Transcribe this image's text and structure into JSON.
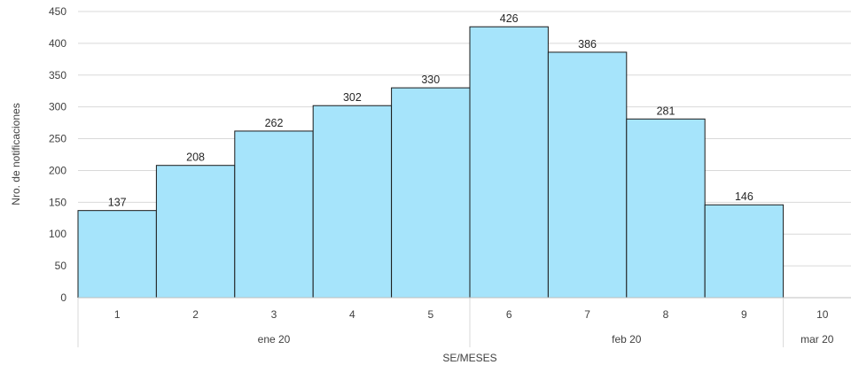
{
  "chart_data": {
    "type": "bar",
    "categories": [
      "1",
      "2",
      "3",
      "4",
      "5",
      "6",
      "7",
      "8",
      "9",
      "10"
    ],
    "values": [
      137,
      208,
      262,
      302,
      330,
      426,
      386,
      281,
      146,
      null
    ],
    "data_labels": [
      "137",
      "208",
      "262",
      "302",
      "330",
      "426",
      "386",
      "281",
      "146",
      ""
    ],
    "groups": [
      {
        "label": "ene 20",
        "categories": [
          "1",
          "2",
          "3",
          "4",
          "5"
        ]
      },
      {
        "label": "feb 20",
        "categories": [
          "6",
          "7",
          "8",
          "9"
        ]
      },
      {
        "label": "mar 20",
        "categories": [
          "10"
        ]
      }
    ],
    "yticks": [
      "0",
      "50",
      "100",
      "150",
      "200",
      "250",
      "300",
      "350",
      "400",
      "450"
    ],
    "ylim": [
      0,
      450
    ],
    "xlabel": "SE/MESES",
    "ylabel": "Nro. de notificaciones",
    "grid": true,
    "bar_color": "#a6e4fb",
    "bar_edge_color": "#1a1a1a"
  }
}
